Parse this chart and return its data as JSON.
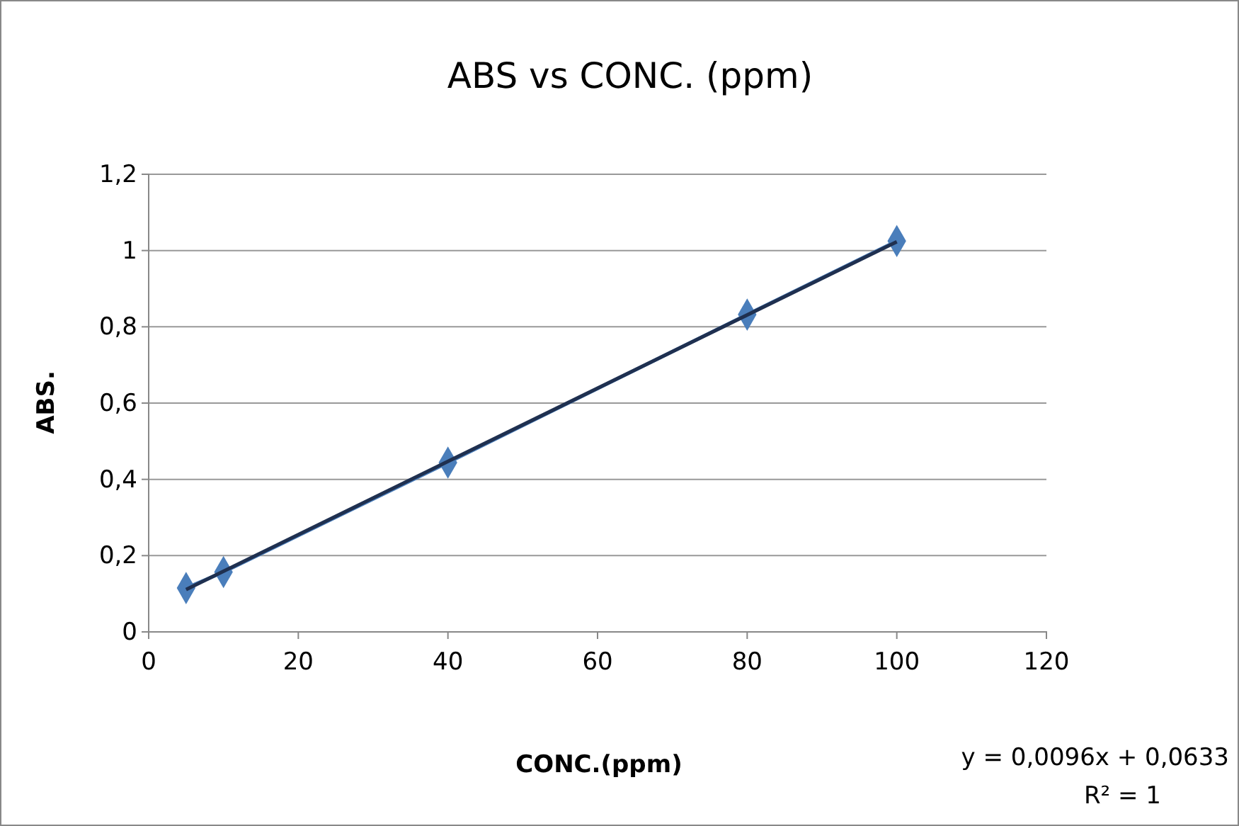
{
  "chart_data": {
    "type": "line",
    "title": "ABS  vs   CONC. (ppm)",
    "xlabel": "CONC.(ppm)",
    "ylabel": "ABS.",
    "xlim": [
      0,
      120
    ],
    "xticks": [
      0,
      20,
      40,
      60,
      80,
      100,
      120
    ],
    "ylim": [
      0,
      1.2
    ],
    "yticks": [
      0,
      {
        "value": 0.2,
        "label": "0,2"
      },
      {
        "value": 0.4,
        "label": "0,4"
      },
      {
        "value": 0.6,
        "label": "0,6"
      },
      {
        "value": 0.8,
        "label": "0,8"
      },
      1,
      {
        "value": 1.2,
        "label": "1,2"
      }
    ],
    "grid": "y",
    "marker": "diamond",
    "series": [
      {
        "color": "#4a7ebb",
        "x": [
          5,
          10,
          40,
          80,
          100
        ],
        "values": [
          0.115,
          0.157,
          0.444,
          0.832,
          1.025
        ]
      },
      {
        "type": "line",
        "color": "#1f3050",
        "x": [
          5,
          100
        ],
        "values": [
          0.111,
          1.023
        ],
        "marker": "none"
      }
    ],
    "annotations": [
      "y = 0,0096x + 0,0633",
      "R² = 1"
    ]
  }
}
